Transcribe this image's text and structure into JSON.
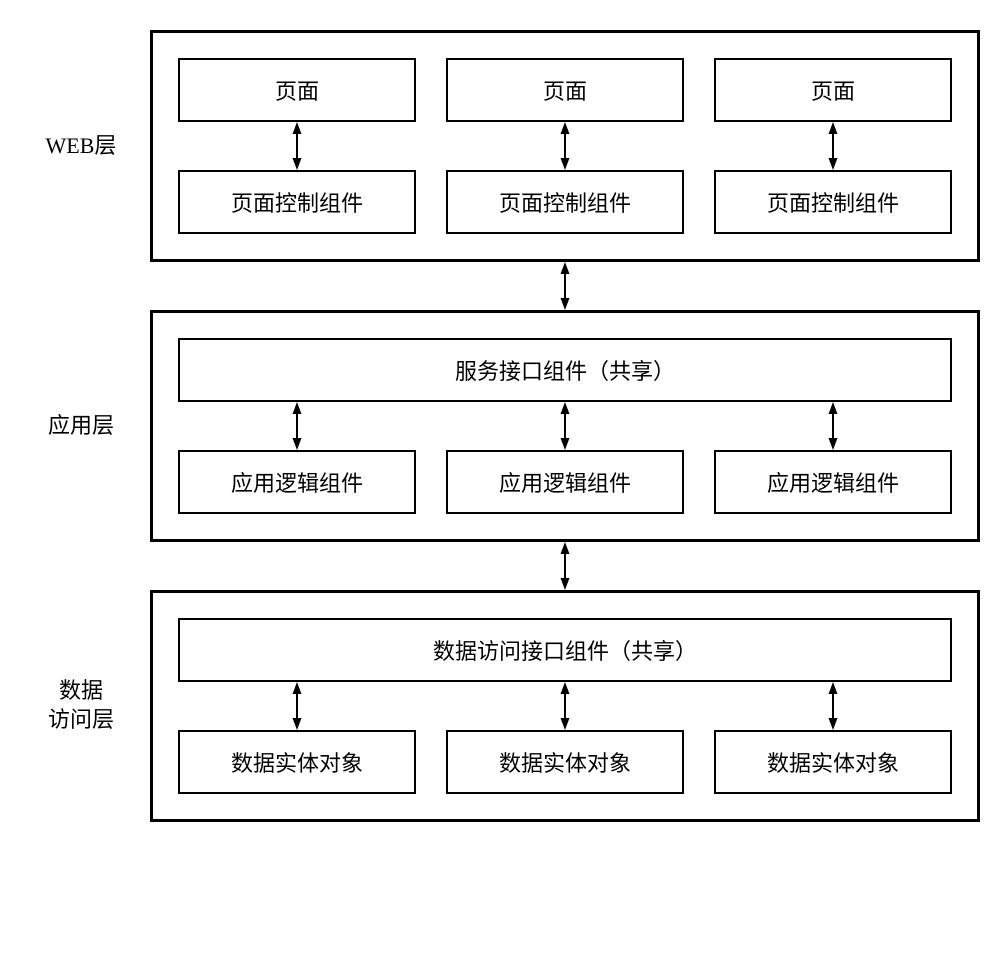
{
  "colors": {
    "stroke": "#000000",
    "background": "#ffffff"
  },
  "typography": {
    "label_fontsize": 22,
    "box_fontsize": 22,
    "font_family": "SimSun"
  },
  "layout": {
    "diagram_width": 960,
    "layer_border_width": 3,
    "inner_border_width": 2,
    "arrow_length_inner": 48,
    "arrow_length_between": 48,
    "arrow_stroke_width": 2,
    "arrowhead_w": 9,
    "arrowhead_h": 12
  },
  "layers": [
    {
      "id": "web",
      "label": "WEB层",
      "structure": "three-pair",
      "top_boxes": [
        "页面",
        "页面",
        "页面"
      ],
      "bottom_boxes": [
        "页面控制组件",
        "页面控制组件",
        "页面控制组件"
      ]
    },
    {
      "id": "app",
      "label": "应用层",
      "structure": "shared-top",
      "top_box": "服务接口组件（共享）",
      "bottom_boxes": [
        "应用逻辑组件",
        "应用逻辑组件",
        "应用逻辑组件"
      ]
    },
    {
      "id": "data",
      "label": "数据\n访问层",
      "structure": "shared-top",
      "top_box": "数据访问接口组件（共享）",
      "bottom_boxes": [
        "数据实体对象",
        "数据实体对象",
        "数据实体对象"
      ]
    }
  ]
}
